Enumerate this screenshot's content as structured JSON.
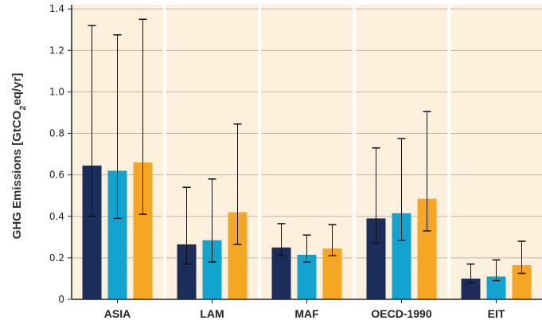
{
  "chart_data": {
    "type": "bar",
    "ylabel": {
      "prefix": "GHG Emissions [GtCO",
      "sub": "2",
      "suffix": "eq/yr]"
    },
    "ylim": [
      0,
      1.4
    ],
    "yticks": [
      0,
      0.2,
      0.4,
      0.6,
      0.8,
      1.0,
      1.2,
      1.4
    ],
    "ytick_labels": [
      "0",
      "0.2",
      "0.4",
      "0.6",
      "0.8",
      "1.0",
      "1.2",
      "1.4"
    ],
    "grid": true,
    "categories": [
      "ASIA",
      "LAM",
      "MAF",
      "OECD-1990",
      "EIT"
    ],
    "series": [
      {
        "color": "#1b2e5a",
        "values": [
          0.645,
          0.265,
          0.25,
          0.39,
          0.1
        ],
        "err_low": [
          0.4,
          0.17,
          0.21,
          0.27,
          0.08
        ],
        "err_high": [
          1.32,
          0.54,
          0.365,
          0.73,
          0.17
        ]
      },
      {
        "color": "#12a3cf",
        "values": [
          0.62,
          0.285,
          0.215,
          0.415,
          0.11
        ],
        "err_low": [
          0.39,
          0.18,
          0.18,
          0.285,
          0.09
        ],
        "err_high": [
          1.275,
          0.58,
          0.31,
          0.775,
          0.19
        ]
      },
      {
        "color": "#f5a623",
        "values": [
          0.66,
          0.42,
          0.245,
          0.485,
          0.165
        ],
        "err_low": [
          0.41,
          0.265,
          0.21,
          0.33,
          0.125
        ],
        "err_high": [
          1.35,
          0.845,
          0.36,
          0.905,
          0.28
        ]
      }
    ],
    "colors": {
      "panel_bg": "#fdf0dc",
      "grid": "#b7b7b7",
      "axis": "#222222"
    }
  }
}
